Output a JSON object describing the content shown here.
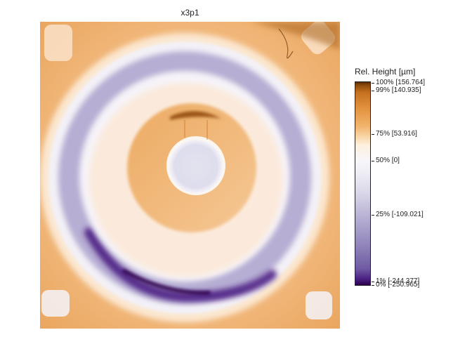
{
  "title": "x3p1",
  "colorbar": {
    "title": "Rel. Height [µm]",
    "labels": {
      "p100": "100% [156.764]",
      "p99": "99% [140.935]",
      "p75": "75% [53.916]",
      "p50": "50% [0]",
      "p25": "25% [-109.021]",
      "p1": "1% [-244.377]",
      "p0": "0% [-250.965]"
    },
    "colors": {
      "high": "#5a2b05",
      "upper": "#e3923e",
      "mid": "#f7f6fa",
      "lower": "#9286bb",
      "low": "#2d004b"
    }
  }
}
